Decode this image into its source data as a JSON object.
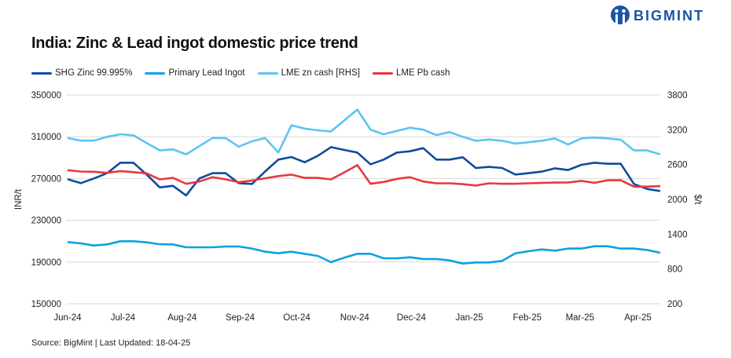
{
  "brand": {
    "name": "BIGMINT",
    "color": "#1a55a6"
  },
  "source": "Source: BigMint | Last Updated: 18-04-25",
  "chart_data": {
    "type": "line",
    "title": "India: Zinc & Lead ingot domestic price trend",
    "ylabel": "INR/t",
    "y2label": "$/t",
    "ylim": [
      150000,
      350000
    ],
    "y2lim": [
      200,
      3800
    ],
    "yticks": [
      "150000",
      "190000",
      "230000",
      "270000",
      "310000",
      "350000"
    ],
    "y2ticks": [
      "200",
      "800",
      "1400",
      "2000",
      "2600",
      "3200",
      "3800"
    ],
    "xticks": [
      "Jun-24",
      "Jul-24",
      "Aug-24",
      "Sep-24",
      "Oct-24",
      "Nov-24",
      "Dec-24",
      "Jan-25",
      "Feb-25",
      "Mar-25",
      "Apr-25"
    ],
    "grid": true,
    "legend_position": "top",
    "series": [
      {
        "name": "SHG Zinc 99.995%",
        "axis": "left",
        "color": "#0d4c9c",
        "values": [
          269300,
          265600,
          270100,
          275100,
          285100,
          285100,
          273800,
          261500,
          263000,
          253800,
          270100,
          275100,
          275100,
          265600,
          264800,
          276800,
          288100,
          290600,
          285600,
          291800,
          300100,
          297400,
          294900,
          283600,
          288100,
          294900,
          296100,
          299100,
          288100,
          288100,
          290400,
          280100,
          281100,
          280100,
          273800,
          275100,
          276600,
          279800,
          278100,
          283100,
          285100,
          284100,
          284100,
          264800,
          260000,
          258000
        ]
      },
      {
        "name": "Primary Lead Ingot",
        "axis": "left",
        "color": "#0aa3e0",
        "values": [
          209200,
          207900,
          205900,
          206900,
          209900,
          209900,
          208900,
          207100,
          206900,
          204100,
          204100,
          204100,
          204900,
          204900,
          202900,
          199900,
          198400,
          199900,
          197900,
          195900,
          189900,
          194100,
          197900,
          197900,
          193600,
          193600,
          194600,
          192900,
          192900,
          191600,
          188600,
          189600,
          189600,
          191100,
          198400,
          200400,
          202100,
          200900,
          202900,
          202900,
          205100,
          205100,
          202900,
          202900,
          201600,
          198900
        ]
      },
      {
        "name": "LME zn cash [RHS]",
        "axis": "right",
        "color": "#5bc5f2",
        "values": [
          3059,
          3014,
          3014,
          3078,
          3123,
          3104,
          2973,
          2845,
          2864,
          2777,
          2917,
          3059,
          3059,
          2909,
          3003,
          3059,
          2808,
          3278,
          3221,
          3191,
          3172,
          3360,
          3548,
          3202,
          3123,
          3180,
          3236,
          3202,
          3108,
          3161,
          3078,
          3011,
          3033,
          3011,
          2962,
          2985,
          3011,
          3052,
          2946,
          3052,
          3067,
          3052,
          3030,
          2845,
          2845,
          2777
        ]
      },
      {
        "name": "LME Pb cash",
        "axis": "right",
        "color": "#e8383d",
        "values": [
          2503,
          2480,
          2477,
          2458,
          2488,
          2469,
          2450,
          2345,
          2371,
          2270,
          2308,
          2383,
          2345,
          2297,
          2326,
          2364,
          2402,
          2428,
          2371,
          2371,
          2345,
          2466,
          2590,
          2270,
          2300,
          2353,
          2383,
          2308,
          2278,
          2278,
          2263,
          2240,
          2278,
          2270,
          2270,
          2278,
          2285,
          2289,
          2293,
          2319,
          2285,
          2330,
          2330,
          2221,
          2221,
          2229
        ]
      }
    ]
  }
}
